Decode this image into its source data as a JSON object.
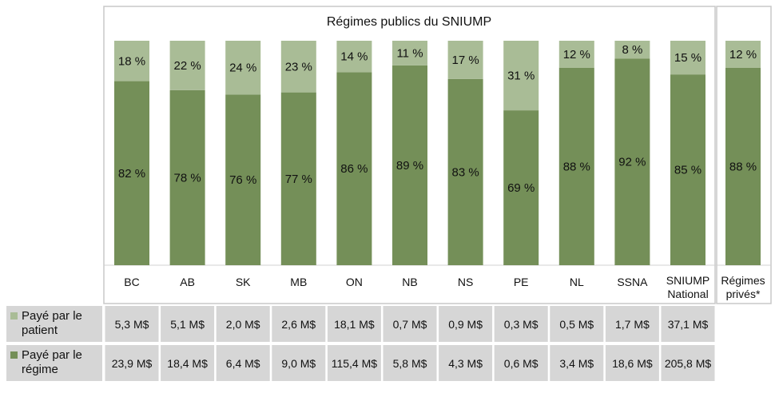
{
  "chart_data": {
    "type": "bar",
    "stacked": true,
    "percent": true,
    "title": "Régimes publics du SNIUMP",
    "categories": [
      "BC",
      "AB",
      "SK",
      "MB",
      "ON",
      "NB",
      "NS",
      "PE",
      "NL",
      "SSNA",
      "SNIUMP National",
      "Régimes privés*"
    ],
    "category_lines": [
      [
        "BC"
      ],
      [
        "AB"
      ],
      [
        "SK"
      ],
      [
        "MB"
      ],
      [
        "ON"
      ],
      [
        "NB"
      ],
      [
        "NS"
      ],
      [
        "PE"
      ],
      [
        "NL"
      ],
      [
        "SSNA"
      ],
      [
        "SNIUMP",
        "National"
      ],
      [
        "Régimes",
        "privés*"
      ]
    ],
    "series": [
      {
        "name": "Payé par le régime",
        "color": "#748f58",
        "values": [
          82,
          78,
          76,
          77,
          86,
          89,
          83,
          69,
          88,
          92,
          85,
          88
        ],
        "labels": [
          "82 %",
          "78 %",
          "76 %",
          "77 %",
          "86 %",
          "89 %",
          "83 %",
          "69 %",
          "88 %",
          "92 %",
          "85 %",
          "88 %"
        ],
        "dollars": [
          "23,9 M$",
          "18,4 M$",
          "6,4 M$",
          "9,0 M$",
          "115,4 M$",
          "5,8 M$",
          "4,3 M$",
          "0,6 M$",
          "3,4 M$",
          "18,6 M$",
          "205,8 M$",
          ""
        ]
      },
      {
        "name": "Payé par le patient",
        "color": "#a9bc96",
        "values": [
          18,
          22,
          24,
          23,
          14,
          11,
          17,
          31,
          12,
          8,
          15,
          12
        ],
        "labels": [
          "18 %",
          "22 %",
          "24 %",
          "23 %",
          "14 %",
          "11 %",
          "17 %",
          "31 %",
          "12 %",
          "8 %",
          "15 %",
          "12 %"
        ],
        "dollars": [
          "5,3 M$",
          "5,1 M$",
          "2,0 M$",
          "2,6 M$",
          "18,1 M$",
          "0,7 M$",
          "0,9 M$",
          "0,3 M$",
          "0,5 M$",
          "1,7 M$",
          "37,1 M$",
          ""
        ]
      }
    ],
    "ylim": [
      0,
      100
    ],
    "table_rows": [
      {
        "legend_lines": [
          "Payé par le",
          "patient"
        ],
        "color": "#a9bc96",
        "series_index": 1
      },
      {
        "legend_lines": [
          "Payé par le",
          "régime"
        ],
        "color": "#748f58",
        "series_index": 0
      }
    ]
  }
}
